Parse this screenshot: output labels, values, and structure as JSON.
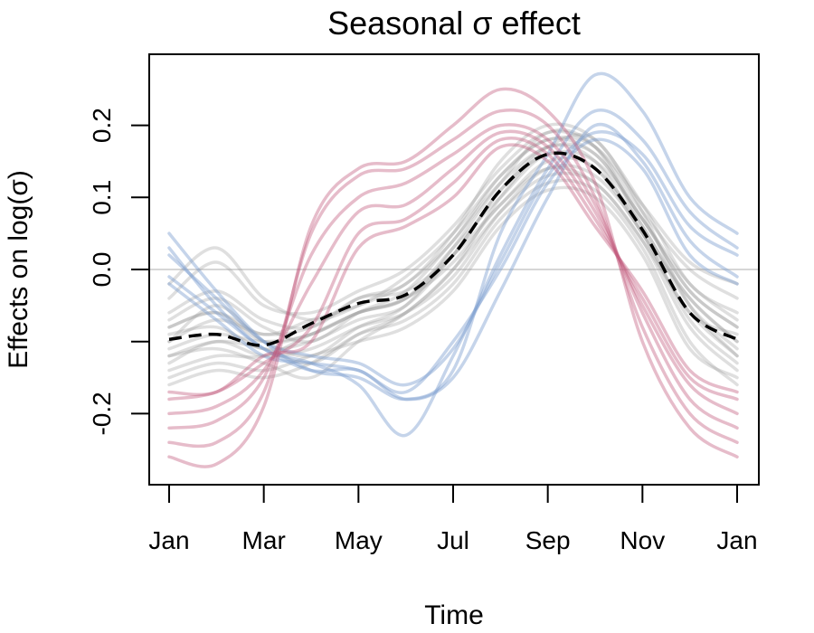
{
  "chart_data": {
    "type": "line",
    "title": "Seasonal σ effect",
    "xlabel": "Time",
    "ylabel": "Effects on log(σ)",
    "x_ticks": [
      "Jan",
      "Mar",
      "May",
      "Jul",
      "Sep",
      "Nov",
      "Jan"
    ],
    "x_tick_positions": [
      0,
      2,
      4,
      6,
      8,
      10,
      12
    ],
    "xlim": [
      0,
      12
    ],
    "y_ticks": [
      -0.2,
      0.0,
      0.1,
      0.2
    ],
    "y_tick_labels": [
      "-0.2",
      "0.0",
      "0.1",
      "0.2"
    ],
    "ylim": [
      -0.29,
      0.3
    ],
    "reference_line": 0.0,
    "sample_x": [
      0,
      1,
      2,
      3,
      4,
      5,
      6,
      7,
      8,
      9,
      10,
      11,
      12
    ],
    "colors": {
      "mean": "#000000",
      "gray": "#9a9a9a",
      "red": "#c0587a",
      "blue": "#7f9fd0",
      "reference": "#c8c8c8"
    },
    "mean_curve": [
      -0.097,
      -0.09,
      -0.105,
      -0.075,
      -0.047,
      -0.035,
      0.02,
      0.11,
      0.16,
      0.14,
      0.055,
      -0.06,
      -0.097
    ],
    "samples": {
      "gray": [
        [
          -0.12,
          -0.11,
          -0.13,
          -0.15,
          -0.1,
          -0.06,
          0.0,
          0.1,
          0.17,
          0.18,
          0.08,
          -0.05,
          -0.12
        ],
        [
          -0.08,
          -0.06,
          -0.09,
          -0.07,
          -0.05,
          -0.02,
          0.04,
          0.13,
          0.18,
          0.16,
          0.07,
          -0.03,
          -0.08
        ],
        [
          -0.14,
          -0.12,
          -0.12,
          -0.09,
          -0.06,
          -0.04,
          0.01,
          0.09,
          0.14,
          0.12,
          0.04,
          -0.08,
          -0.14
        ],
        [
          -0.1,
          -0.05,
          -0.1,
          -0.12,
          -0.08,
          -0.05,
          0.03,
          0.12,
          0.19,
          0.17,
          0.06,
          -0.04,
          -0.1
        ],
        [
          -0.06,
          -0.03,
          -0.07,
          -0.08,
          -0.04,
          -0.02,
          0.05,
          0.15,
          0.2,
          0.18,
          0.09,
          -0.02,
          -0.06
        ],
        [
          -0.16,
          -0.14,
          -0.15,
          -0.13,
          -0.09,
          -0.07,
          -0.02,
          0.07,
          0.12,
          0.11,
          0.03,
          -0.1,
          -0.16
        ],
        [
          -0.09,
          -0.08,
          -0.11,
          -0.1,
          -0.07,
          -0.05,
          0.02,
          0.11,
          0.17,
          0.15,
          0.05,
          -0.06,
          -0.09
        ],
        [
          -0.04,
          0.01,
          -0.05,
          -0.06,
          -0.03,
          0.0,
          0.06,
          0.14,
          0.19,
          0.17,
          0.08,
          0.0,
          -0.04
        ],
        [
          -0.13,
          -0.1,
          -0.12,
          -0.11,
          -0.08,
          -0.06,
          -0.01,
          0.08,
          0.14,
          0.13,
          0.05,
          -0.07,
          -0.13
        ],
        [
          -0.11,
          -0.09,
          -0.1,
          -0.09,
          -0.06,
          -0.04,
          0.03,
          0.1,
          0.16,
          0.14,
          0.06,
          -0.05,
          -0.11
        ],
        [
          -0.07,
          -0.04,
          -0.08,
          -0.1,
          -0.06,
          -0.03,
          0.04,
          0.12,
          0.17,
          0.16,
          0.07,
          -0.02,
          -0.07
        ],
        [
          -0.15,
          -0.13,
          -0.14,
          -0.12,
          -0.1,
          -0.08,
          -0.03,
          0.06,
          0.11,
          0.1,
          0.02,
          -0.11,
          -0.15
        ],
        [
          -0.02,
          0.03,
          -0.04,
          -0.07,
          -0.05,
          -0.01,
          0.05,
          0.13,
          0.18,
          0.17,
          0.09,
          0.01,
          -0.02
        ],
        [
          -0.1,
          -0.07,
          -0.09,
          -0.08,
          -0.04,
          -0.03,
          0.02,
          0.09,
          0.15,
          0.14,
          0.05,
          -0.04,
          -0.1
        ],
        [
          -0.12,
          -0.1,
          -0.11,
          -0.13,
          -0.09,
          -0.06,
          0.0,
          0.08,
          0.13,
          0.12,
          0.04,
          -0.06,
          -0.12
        ],
        [
          -0.08,
          -0.06,
          -0.1,
          -0.09,
          -0.06,
          -0.04,
          0.02,
          0.11,
          0.16,
          0.15,
          0.07,
          -0.03,
          -0.08
        ]
      ],
      "red": [
        [
          -0.26,
          -0.27,
          -0.19,
          0.06,
          0.14,
          0.15,
          0.2,
          0.25,
          0.22,
          0.12,
          -0.1,
          -0.22,
          -0.26
        ],
        [
          -0.24,
          -0.24,
          -0.17,
          0.05,
          0.13,
          0.14,
          0.18,
          0.22,
          0.2,
          0.1,
          -0.08,
          -0.2,
          -0.24
        ],
        [
          -0.22,
          -0.21,
          -0.15,
          0.02,
          0.1,
          0.12,
          0.16,
          0.2,
          0.18,
          0.09,
          -0.06,
          -0.18,
          -0.22
        ],
        [
          -0.2,
          -0.19,
          -0.14,
          -0.02,
          0.08,
          0.09,
          0.14,
          0.19,
          0.17,
          0.08,
          -0.05,
          -0.16,
          -0.2
        ],
        [
          -0.18,
          -0.17,
          -0.13,
          -0.08,
          0.05,
          0.07,
          0.12,
          0.18,
          0.16,
          0.07,
          -0.04,
          -0.15,
          -0.18
        ],
        [
          -0.17,
          -0.17,
          -0.12,
          -0.1,
          0.03,
          0.06,
          0.1,
          0.17,
          0.15,
          0.06,
          -0.03,
          -0.14,
          -0.17
        ]
      ],
      "blue": [
        [
          0.05,
          -0.03,
          -0.1,
          -0.14,
          -0.15,
          -0.18,
          -0.14,
          0.05,
          0.16,
          0.27,
          0.22,
          0.1,
          0.05
        ],
        [
          0.03,
          -0.05,
          -0.11,
          -0.13,
          -0.16,
          -0.23,
          -0.12,
          0.02,
          0.14,
          0.22,
          0.18,
          0.08,
          0.03
        ],
        [
          -0.01,
          -0.06,
          -0.11,
          -0.14,
          -0.14,
          -0.18,
          -0.15,
          -0.03,
          0.1,
          0.2,
          0.15,
          0.04,
          -0.01
        ],
        [
          -0.02,
          -0.07,
          -0.12,
          -0.13,
          -0.14,
          -0.17,
          -0.1,
          0.0,
          0.12,
          0.18,
          0.14,
          0.02,
          -0.02
        ],
        [
          0.02,
          -0.04,
          -0.1,
          -0.12,
          -0.13,
          -0.16,
          -0.11,
          0.01,
          0.13,
          0.19,
          0.16,
          0.06,
          0.02
        ]
      ]
    }
  }
}
